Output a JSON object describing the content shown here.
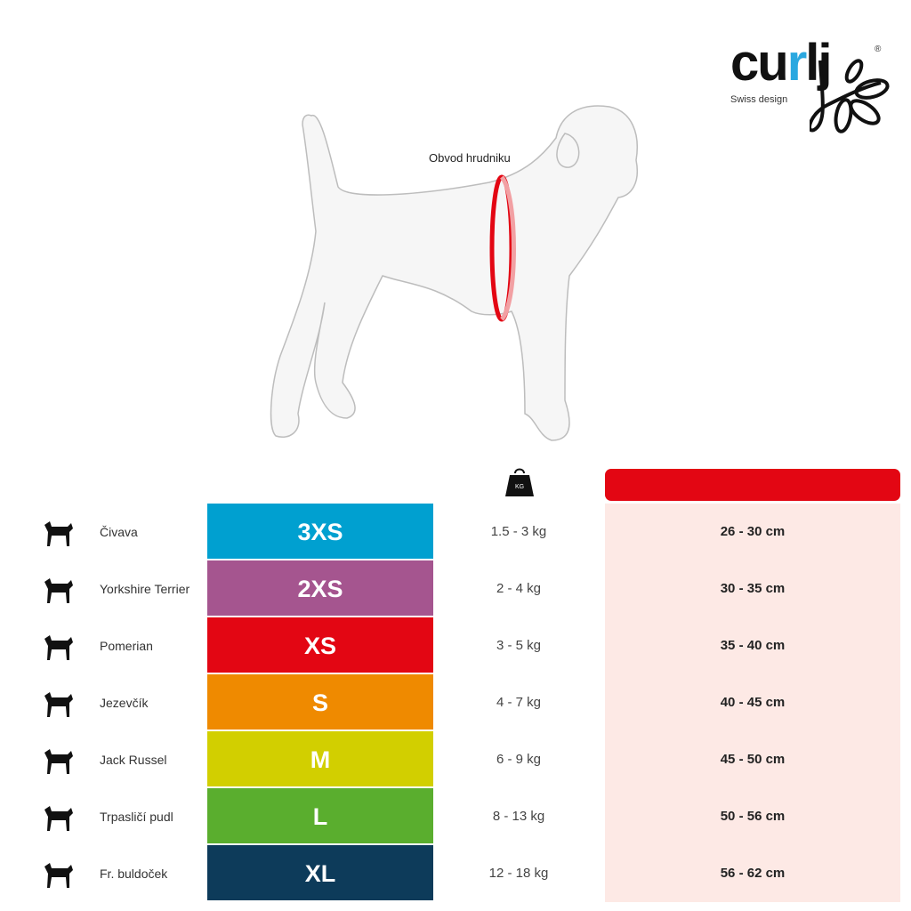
{
  "brand": {
    "name_prefix": "cu",
    "name_accent": "r",
    "name_suffix": "lj",
    "tagline": "Swiss design",
    "registered": "®"
  },
  "diagram": {
    "label": "Obvod hrudniku",
    "ring_color": "#e30613"
  },
  "table": {
    "weight_icon": "weight-kg-icon",
    "weight_icon_text": "KG",
    "header_color": "#e30613",
    "rows": [
      {
        "breed": "Čivava",
        "size": "3XS",
        "color": "#00a0d0",
        "weight": "1.5 - 3 kg",
        "chest": "26 - 30 cm"
      },
      {
        "breed": "Yorkshire Terrier",
        "size": "2XS",
        "color": "#a5558f",
        "weight": "2 - 4 kg",
        "chest": "30 - 35 cm"
      },
      {
        "breed": "Pomerian",
        "size": "XS",
        "color": "#e30613",
        "weight": "3 - 5 kg",
        "chest": "35 - 40 cm"
      },
      {
        "breed": "Jezevčík",
        "size": "S",
        "color": "#ef8a00",
        "weight": "4 - 7 kg",
        "chest": "40 - 45 cm"
      },
      {
        "breed": "Jack Russel",
        "size": "M",
        "color": "#d2cf00",
        "weight": "6 - 9 kg",
        "chest": "45 - 50 cm"
      },
      {
        "breed": "Trpasličí pudl",
        "size": "L",
        "color": "#5aae2e",
        "weight": "8 - 13 kg",
        "chest": "50 - 56 cm"
      },
      {
        "breed": "Fr. buldoček",
        "size": "XL",
        "color": "#0d3b5a",
        "weight": "12 - 18 kg",
        "chest": "56 - 62 cm"
      }
    ]
  }
}
